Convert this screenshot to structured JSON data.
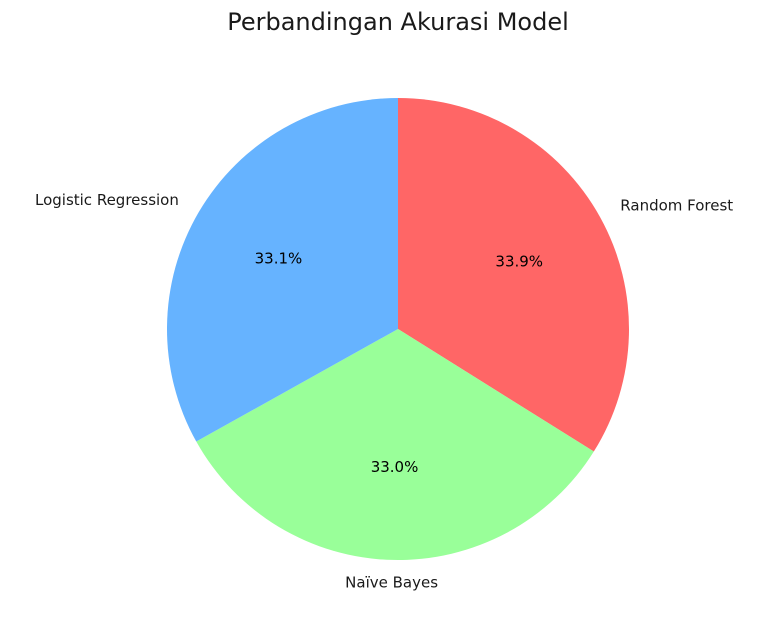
{
  "chart_data": {
    "type": "pie",
    "title": "Perbandingan Akurasi Model",
    "start_angle_deg": 90,
    "direction": "clockwise",
    "legend": "none",
    "slices": [
      {
        "label": "Random Forest",
        "value": 33.9,
        "pct_label": "33.9%",
        "color": "#ff6666"
      },
      {
        "label": "Naïve Bayes",
        "value": 33.0,
        "pct_label": "33.0%",
        "color": "#99ff99"
      },
      {
        "label": "Logistic Regression",
        "value": 33.1,
        "pct_label": "33.1%",
        "color": "#66b3ff"
      }
    ]
  }
}
